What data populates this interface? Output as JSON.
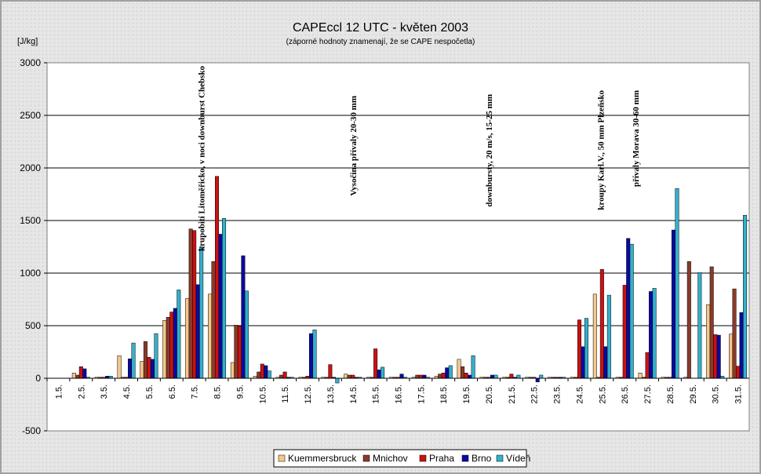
{
  "chart_data": {
    "type": "bar",
    "title": "CAPEccl 12 UTC - květen 2003",
    "subtitle": "(záporné hodnoty znamenají, že se CAPE nespočetla)",
    "ylabel": "[J/kg]",
    "ylim": [
      -500,
      3000
    ],
    "yticks": [
      "3000",
      "2500",
      "2000",
      "1500",
      "1000",
      "500",
      "0",
      "-500"
    ],
    "categories": [
      "1.5.",
      "2.5.",
      "3.5.",
      "4.5.",
      "5.5.",
      "6.5.",
      "7.5.",
      "8.5.",
      "9.5.",
      "10.5.",
      "11.5.",
      "12.5.",
      "13.5.",
      "14.5.",
      "15.5.",
      "16.5.",
      "17.5.",
      "18.5.",
      "19.5.",
      "20.5.",
      "21.5.",
      "22.5.",
      "23.5.",
      "24.5.",
      "25.5.",
      "26.5.",
      "27.5.",
      "28.5.",
      "29.5.",
      "30.5.",
      "31.5."
    ],
    "series": [
      {
        "name": "Kuemmersbruck",
        "color": "#f3c88a",
        "values": [
          0,
          50,
          10,
          215,
          160,
          550,
          760,
          800,
          150,
          20,
          10,
          10,
          10,
          40,
          10,
          10,
          10,
          20,
          180,
          10,
          10,
          10,
          10,
          10,
          800,
          10,
          50,
          10,
          10,
          700,
          420
        ]
      },
      {
        "name": "Mnichov",
        "color": "#8b3a2a",
        "values": [
          0,
          30,
          10,
          10,
          350,
          580,
          1420,
          1110,
          505,
          60,
          30,
          10,
          10,
          30,
          10,
          10,
          30,
          40,
          110,
          10,
          10,
          10,
          10,
          10,
          10,
          10,
          10,
          10,
          1110,
          1060,
          850
        ]
      },
      {
        "name": "Praha",
        "color": "#cc1111",
        "values": [
          0,
          110,
          10,
          10,
          200,
          630,
          1405,
          1920,
          495,
          135,
          60,
          20,
          130,
          30,
          280,
          10,
          30,
          50,
          50,
          10,
          40,
          10,
          10,
          555,
          1035,
          885,
          245,
          10,
          0,
          415,
          115
        ]
      },
      {
        "name": "Brno",
        "color": "#0a0aa0",
        "values": [
          0,
          90,
          20,
          185,
          180,
          665,
          890,
          1370,
          1165,
          120,
          10,
          425,
          10,
          10,
          80,
          40,
          30,
          100,
          30,
          30,
          10,
          -35,
          10,
          300,
          300,
          1330,
          825,
          1410,
          0,
          410,
          625
        ]
      },
      {
        "name": "Vídeň",
        "color": "#33b0cc",
        "values": [
          0,
          10,
          20,
          335,
          425,
          840,
          1250,
          1520,
          830,
          70,
          10,
          460,
          -45,
          10,
          105,
          10,
          10,
          120,
          215,
          30,
          30,
          30,
          10,
          570,
          790,
          1275,
          855,
          1805,
          1005,
          20,
          1550
        ]
      }
    ],
    "grid": true,
    "legend_position": "bottom",
    "annotations": [
      {
        "text": "krupobití Litoměřicko, v noci downburst Chebsko",
        "category_index": 7
      },
      {
        "text": "Vysočina přívaly 20-30 mm",
        "category_index": 13
      },
      {
        "text": "downbursty, 20 m/s, 15-25 mm",
        "category_index": 19
      },
      {
        "text": "kroupy Karl.V., 50 mm Plzeňsko",
        "category_index": 24
      },
      {
        "text": "přívaly Morava 30-60 mm",
        "category_index": 25
      }
    ]
  }
}
